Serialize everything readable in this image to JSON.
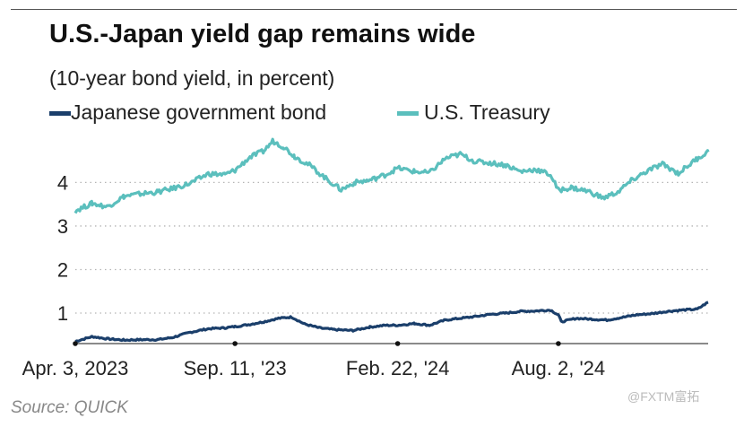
{
  "header": {
    "title": "U.S.-Japan yield gap remains wide",
    "subtitle": "(10-year bond yield, in percent)"
  },
  "footer": {
    "source": "Source: QUICK"
  },
  "watermark": "@FXTM富拓",
  "colors": {
    "jgb": "#1b3f6b",
    "ust": "#5bbfbd",
    "grid": "#b5b5b5",
    "axis": "#444444"
  },
  "chart_data": {
    "type": "line",
    "title": "U.S.-Japan yield gap remains wide",
    "subtitle": "(10-year bond yield, in percent)",
    "xlabel": "",
    "ylabel": "",
    "x_range": [
      "2023-04-03",
      "2024-12-31"
    ],
    "ylim": [
      0.3,
      5.1
    ],
    "yticks": [
      1,
      2,
      3,
      4
    ],
    "xticks": [
      {
        "date": "2023-04-03",
        "label": "Apr. 3, 2023"
      },
      {
        "date": "2023-09-11",
        "label": "Sep. 11, '23"
      },
      {
        "date": "2024-02-22",
        "label": "Feb. 22, '24"
      },
      {
        "date": "2024-08-02",
        "label": "Aug. 2, '24"
      }
    ],
    "grid": "horizontal dotted",
    "legend_position": "top-left",
    "series": [
      {
        "name": "Japanese government bond",
        "color": "#1b3f6b",
        "x": [
          "2023-04-03",
          "2023-04-20",
          "2023-05-05",
          "2023-05-22",
          "2023-06-08",
          "2023-06-25",
          "2023-07-10",
          "2023-07-28",
          "2023-08-15",
          "2023-09-01",
          "2023-09-11",
          "2023-09-26",
          "2023-10-10",
          "2023-10-25",
          "2023-11-07",
          "2023-11-20",
          "2023-12-05",
          "2023-12-20",
          "2024-01-08",
          "2024-01-25",
          "2024-02-10",
          "2024-02-22",
          "2024-03-10",
          "2024-03-25",
          "2024-04-10",
          "2024-04-25",
          "2024-05-10",
          "2024-05-25",
          "2024-06-10",
          "2024-06-25",
          "2024-07-10",
          "2024-07-25",
          "2024-08-02",
          "2024-08-05",
          "2024-08-20",
          "2024-09-05",
          "2024-09-20",
          "2024-10-05",
          "2024-10-20",
          "2024-11-05",
          "2024-11-20",
          "2024-12-05",
          "2024-12-20",
          "2024-12-31"
        ],
        "y": [
          0.35,
          0.46,
          0.41,
          0.38,
          0.39,
          0.39,
          0.44,
          0.56,
          0.64,
          0.66,
          0.69,
          0.74,
          0.8,
          0.88,
          0.91,
          0.75,
          0.66,
          0.62,
          0.6,
          0.68,
          0.72,
          0.72,
          0.76,
          0.72,
          0.84,
          0.88,
          0.92,
          0.97,
          1.0,
          1.04,
          1.05,
          1.07,
          0.96,
          0.8,
          0.88,
          0.86,
          0.84,
          0.9,
          0.96,
          0.99,
          1.04,
          1.07,
          1.09,
          1.25
        ]
      },
      {
        "name": "U.S. Treasury",
        "color": "#5bbfbd",
        "x": [
          "2023-04-03",
          "2023-04-20",
          "2023-05-05",
          "2023-05-22",
          "2023-06-08",
          "2023-06-25",
          "2023-07-10",
          "2023-07-28",
          "2023-08-15",
          "2023-09-01",
          "2023-09-11",
          "2023-09-26",
          "2023-10-10",
          "2023-10-19",
          "2023-10-30",
          "2023-11-10",
          "2023-11-25",
          "2023-12-10",
          "2023-12-27",
          "2024-01-10",
          "2024-01-25",
          "2024-02-10",
          "2024-02-22",
          "2024-03-10",
          "2024-03-25",
          "2024-04-10",
          "2024-04-25",
          "2024-05-10",
          "2024-05-25",
          "2024-06-10",
          "2024-06-25",
          "2024-07-10",
          "2024-07-25",
          "2024-08-02",
          "2024-08-15",
          "2024-09-01",
          "2024-09-16",
          "2024-10-01",
          "2024-10-15",
          "2024-11-01",
          "2024-11-15",
          "2024-12-01",
          "2024-12-20",
          "2024-12-31"
        ],
        "y": [
          3.35,
          3.52,
          3.44,
          3.68,
          3.74,
          3.78,
          3.86,
          3.98,
          4.2,
          4.18,
          4.28,
          4.58,
          4.72,
          4.95,
          4.82,
          4.6,
          4.4,
          4.12,
          3.83,
          4.0,
          4.05,
          4.18,
          4.33,
          4.25,
          4.22,
          4.55,
          4.65,
          4.48,
          4.45,
          4.4,
          4.25,
          4.3,
          4.18,
          3.82,
          3.88,
          3.8,
          3.64,
          3.78,
          4.05,
          4.28,
          4.42,
          4.21,
          4.55,
          4.7
        ]
      }
    ]
  }
}
